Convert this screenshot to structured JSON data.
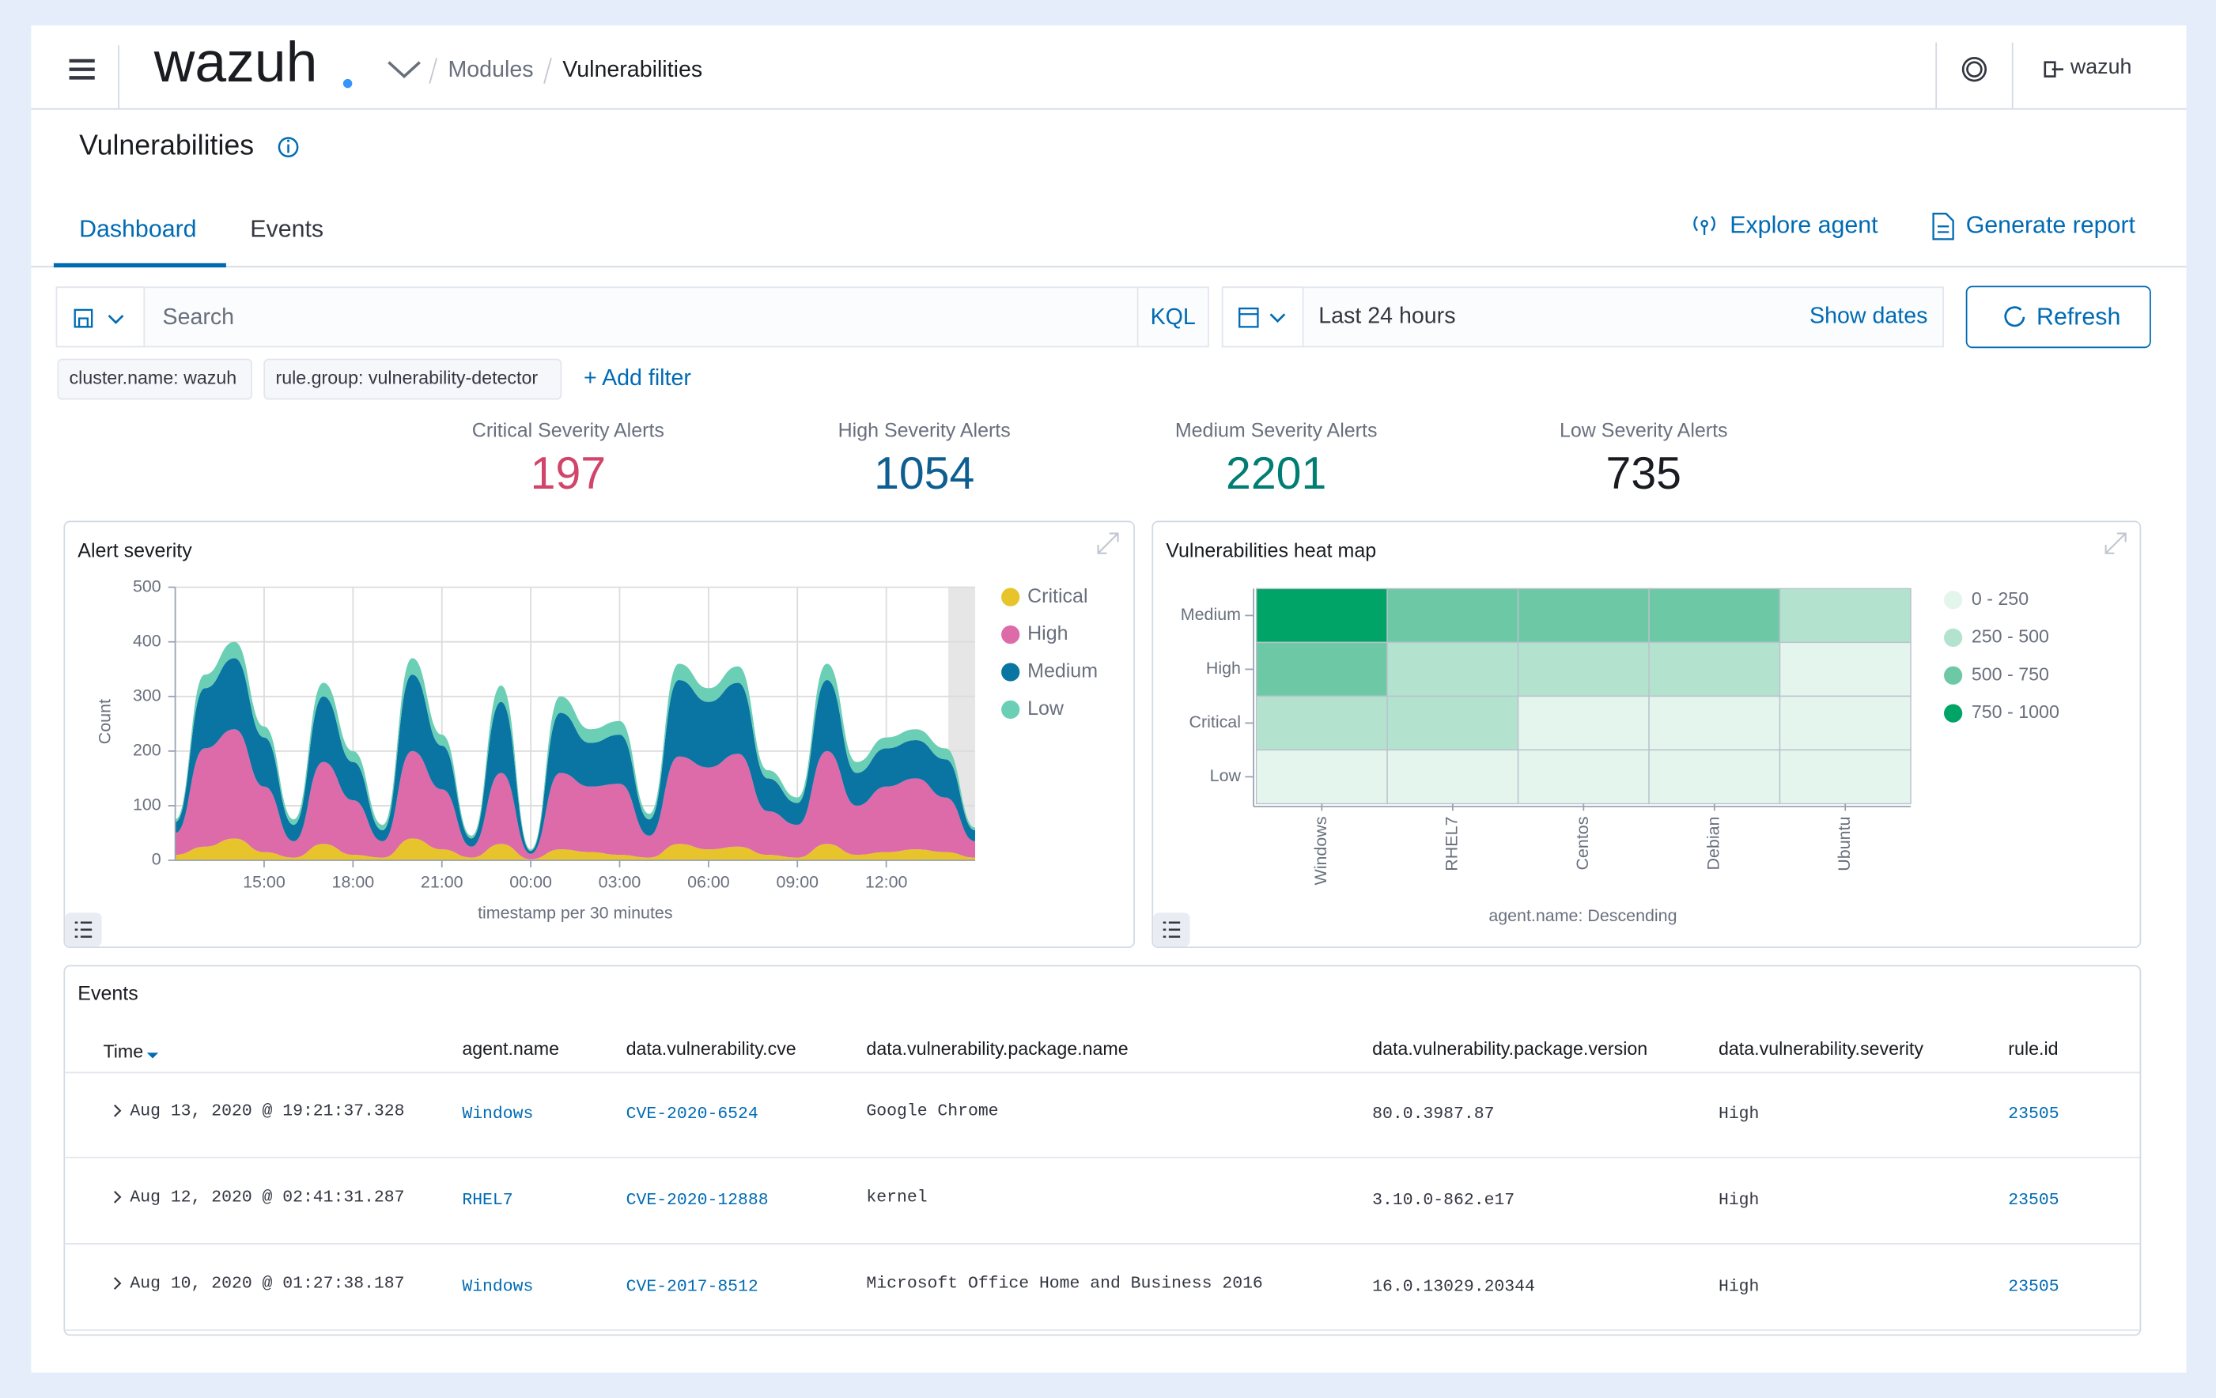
{
  "header": {
    "logo": "wazuh",
    "breadcrumb": [
      "Modules",
      "Vulnerabilities"
    ],
    "user": "wazuh"
  },
  "page": {
    "title": "Vulnerabilities",
    "tabs": [
      "Dashboard",
      "Events"
    ],
    "actions": [
      "Explore agent",
      "Generate report"
    ]
  },
  "search": {
    "placeholder": "Search",
    "language": "KQL",
    "time_range": "Last 24 hours",
    "show_dates": "Show dates",
    "refresh": "Refresh",
    "filters": [
      "cluster.name: wazuh",
      "rule.group: vulnerability-detector"
    ],
    "add_filter": "+ Add filter"
  },
  "stats": [
    {
      "label": "Critical Severity Alerts",
      "value": 197,
      "color": "#d1456a"
    },
    {
      "label": "High Severity Alerts",
      "value": 1054,
      "color": "#0f5e92"
    },
    {
      "label": "Medium Severity Alerts",
      "value": 2201,
      "color": "#017d73"
    },
    {
      "label": "Low Severity Alerts",
      "value": 735,
      "color": "#1a1c21"
    }
  ],
  "chart_data": [
    {
      "type": "area",
      "stacked": true,
      "title": "Alert severity",
      "ylabel": "Count",
      "xlabel": "timestamp per 30 minutes",
      "x": [
        0,
        1,
        2,
        3,
        4,
        5,
        6,
        7,
        8,
        9,
        10,
        11,
        12,
        13,
        14,
        15,
        16,
        17,
        18,
        19,
        20,
        21,
        22,
        23,
        24,
        25,
        26,
        27
      ],
      "xlim": [
        0,
        27
      ],
      "xticks": [
        {
          "value": 3,
          "label": "15:00"
        },
        {
          "value": 6,
          "label": "18:00"
        },
        {
          "value": 9,
          "label": "21:00"
        },
        {
          "value": 12,
          "label": "00:00"
        },
        {
          "value": 15,
          "label": "03:00"
        },
        {
          "value": 18,
          "label": "06:00"
        },
        {
          "value": 21,
          "label": "09:00"
        },
        {
          "value": 24,
          "label": "12:00"
        }
      ],
      "ylim": [
        0,
        500
      ],
      "yticks": [
        0,
        100,
        200,
        300,
        400,
        500
      ],
      "grid": true,
      "legend": "right",
      "series": [
        {
          "name": "Critical",
          "color": "#e7c42c",
          "values": [
            10,
            25,
            40,
            15,
            5,
            30,
            10,
            5,
            40,
            20,
            5,
            30,
            2,
            20,
            15,
            10,
            5,
            30,
            20,
            25,
            10,
            5,
            30,
            10,
            15,
            20,
            15,
            5
          ]
        },
        {
          "name": "High",
          "color": "#dd6aa9",
          "values": [
            40,
            180,
            200,
            120,
            30,
            150,
            100,
            30,
            160,
            110,
            20,
            130,
            10,
            140,
            120,
            130,
            40,
            160,
            150,
            170,
            80,
            60,
            170,
            90,
            120,
            130,
            100,
            30
          ]
        },
        {
          "name": "Medium",
          "color": "#0a75a3",
          "values": [
            20,
            110,
            130,
            90,
            30,
            120,
            70,
            20,
            140,
            80,
            15,
            130,
            5,
            110,
            80,
            90,
            30,
            140,
            120,
            130,
            60,
            40,
            130,
            60,
            70,
            70,
            70,
            20
          ]
        },
        {
          "name": "Low",
          "color": "#6bcfb5",
          "values": [
            5,
            25,
            30,
            20,
            10,
            25,
            20,
            10,
            30,
            20,
            5,
            30,
            3,
            30,
            25,
            25,
            10,
            30,
            25,
            30,
            15,
            10,
            30,
            20,
            20,
            20,
            20,
            5
          ]
        }
      ]
    },
    {
      "type": "heatmap",
      "title": "Vulnerabilities heat map",
      "xlabel": "agent.name: Descending",
      "categories": [
        "Windows",
        "RHEL7",
        "Centos",
        "Debian",
        "Ubuntu"
      ],
      "y_categories": [
        "Medium",
        "High",
        "Critical",
        "Low"
      ],
      "values": [
        [
          820,
          600,
          600,
          600,
          400
        ],
        [
          600,
          400,
          400,
          400,
          200
        ],
        [
          400,
          400,
          150,
          150,
          150
        ],
        [
          100,
          100,
          100,
          100,
          100
        ]
      ],
      "legend_bins": [
        {
          "label": "0 - 250",
          "min": 0,
          "max": 250,
          "color": "#e4f5ed"
        },
        {
          "label": "250 - 500",
          "min": 250,
          "max": 500,
          "color": "#b3e3cf"
        },
        {
          "label": "500 - 750",
          "min": 500,
          "max": 750,
          "color": "#6dc9a5"
        },
        {
          "label": "750 - 1000",
          "min": 750,
          "max": 1000,
          "color": "#00a467"
        }
      ]
    }
  ],
  "events": {
    "title": "Events",
    "columns": [
      "Time",
      "agent.name",
      "data.vulnerability.cve",
      "data.vulnerability.package.name",
      "data.vulnerability.package.version",
      "data.vulnerability.severity",
      "rule.id"
    ],
    "rows": [
      [
        "Aug 13, 2020 @ 19:21:37.328",
        "Windows",
        "CVE-2020-6524",
        "Google Chrome",
        "80.0.3987.87",
        "High",
        "23505"
      ],
      [
        "Aug 12, 2020 @ 02:41:31.287",
        "RHEL7",
        "CVE-2020-12888",
        "kernel",
        "3.10.0-862.e17",
        "High",
        "23505"
      ],
      [
        "Aug 10, 2020 @ 01:27:38.187",
        "Windows",
        "CVE-2017-8512",
        "Microsoft Office Home and Business 2016",
        "16.0.13029.20344",
        "High",
        "23505"
      ]
    ]
  }
}
